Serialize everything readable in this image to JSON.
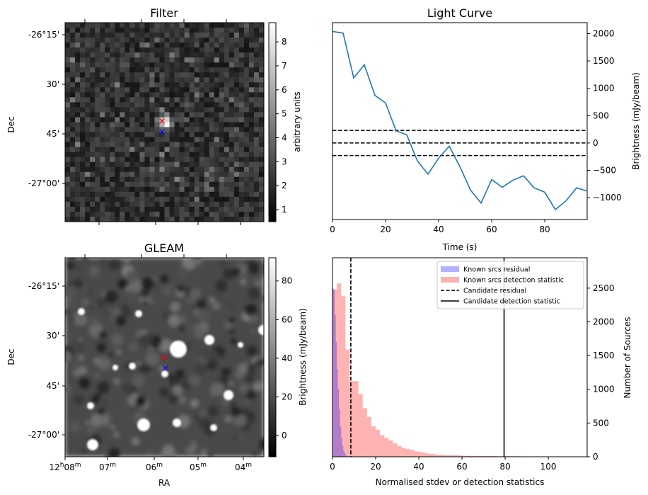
{
  "chart_data": [
    {
      "type": "heatmap",
      "title": "Filter",
      "ylabel": "Dec",
      "ytick_labels": [
        "-26°15'",
        "30'",
        "45'",
        "-27°00'"
      ],
      "colorbar": {
        "label": "arbitrary units",
        "ticks": [
          "1",
          "2",
          "3",
          "4",
          "5",
          "6",
          "7",
          "8"
        ],
        "range": [
          0.5,
          8.8
        ],
        "colormap": "gray"
      },
      "markers": [
        {
          "symbol": "x",
          "color": "#ff0000"
        },
        {
          "symbol": "x",
          "color": "#0000ff"
        }
      ]
    },
    {
      "type": "line",
      "title": "Light Curve",
      "xlabel": "Time (s)",
      "ylabel": "Brightness (mJy/beam)",
      "xlim": [
        0,
        96
      ],
      "ylim": [
        -1400,
        2200
      ],
      "xticks": [
        "0",
        "20",
        "40",
        "60",
        "80"
      ],
      "yticks": [
        "-1000",
        "-500",
        "0",
        "500",
        "1000",
        "1500",
        "2000"
      ],
      "series": [
        {
          "color": "#1f77b4",
          "x": [
            0,
            4,
            8,
            12,
            16,
            20,
            24,
            28,
            32,
            36,
            40,
            44,
            48,
            52,
            56,
            60,
            64,
            68,
            72,
            76,
            80,
            84,
            88,
            92,
            96
          ],
          "y": [
            2040,
            2010,
            1190,
            1430,
            870,
            730,
            220,
            150,
            -330,
            -570,
            -280,
            -60,
            -430,
            -860,
            -1100,
            -670,
            -810,
            -680,
            -600,
            -820,
            -900,
            -1220,
            -1060,
            -820,
            -880
          ]
        }
      ],
      "hlines": [
        {
          "y": 230,
          "style": "dashed",
          "color": "#000000"
        },
        {
          "y": 0,
          "style": "dashed",
          "color": "#000000"
        },
        {
          "y": -230,
          "style": "dashed",
          "color": "#000000"
        }
      ]
    },
    {
      "type": "heatmap",
      "title": "GLEAM",
      "xlabel": "RA",
      "ylabel": "Dec",
      "ytick_labels": [
        "-26°15'",
        "30'",
        "45'",
        "-27°00'"
      ],
      "xtick_labels": [
        "12h08m",
        "07m",
        "06m",
        "05m",
        "04m"
      ],
      "colorbar": {
        "label": "Brightness (mJy/beam)",
        "ticks": [
          "0",
          "20",
          "40",
          "60",
          "80"
        ],
        "range": [
          -11,
          92
        ],
        "colormap": "gray"
      },
      "markers": [
        {
          "symbol": "x",
          "color": "#ff0000"
        },
        {
          "symbol": "x",
          "color": "#0000ff"
        }
      ]
    },
    {
      "type": "bar",
      "subtype": "histogram",
      "xlabel": "Normalised stdev or detection statistics",
      "ylabel": "Number of Sources",
      "xlim": [
        0,
        118
      ],
      "ylim": [
        0,
        2950
      ],
      "xticks": [
        "0",
        "20",
        "40",
        "60",
        "80",
        "100"
      ],
      "yticks": [
        "0",
        "500",
        "1000",
        "1500",
        "2000",
        "2500"
      ],
      "legend": "top-right",
      "series": [
        {
          "name": "Known srcs residual",
          "color": "#0000ff",
          "alpha": 0.3,
          "bin_width": 0.5,
          "bin_start": 0,
          "counts": [
            2500,
            2480,
            2100,
            1700,
            1300,
            1000,
            700,
            450,
            280,
            160,
            90,
            50,
            25,
            12,
            5
          ]
        },
        {
          "name": "Known srcs detection statistic",
          "color": "#ff0000",
          "alpha": 0.3,
          "bin_width": 2,
          "bin_start": 0,
          "counts": [
            2480,
            2570,
            2380,
            1590,
            1120,
            1120,
            930,
            720,
            590,
            450,
            400,
            320,
            280,
            240,
            200,
            160,
            130,
            115,
            100,
            80,
            70,
            60,
            45,
            40,
            30,
            30,
            25,
            25,
            25,
            20,
            15,
            15,
            15,
            12,
            12,
            10,
            10,
            10,
            8,
            8,
            8,
            8,
            8,
            6,
            6,
            5,
            5,
            5,
            5,
            5,
            5,
            4,
            4,
            4,
            4,
            3,
            3,
            3,
            3
          ]
        }
      ],
      "vlines": [
        {
          "name": "Candidate residual",
          "x": 8.5,
          "style": "dashed",
          "color": "#000000"
        },
        {
          "name": "Candidate detection statistic",
          "x": 79.5,
          "style": "solid",
          "color": "#000000"
        }
      ]
    }
  ]
}
